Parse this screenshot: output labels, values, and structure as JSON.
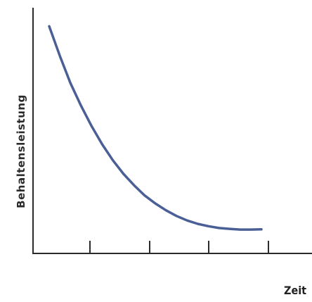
{
  "chart_data": {
    "type": "line",
    "title": "",
    "xlabel": "Zeit",
    "ylabel": "Behaltensleistung",
    "categories": [
      "",
      "",
      "",
      ""
    ],
    "grid": false,
    "legend": "none",
    "series": [
      {
        "x": [
          0,
          0.5,
          1,
          1.5,
          2,
          2.5,
          3,
          3.5,
          4,
          4.5,
          5,
          5.5,
          6,
          6.5,
          7,
          7.5,
          8,
          8.5,
          9,
          9.5,
          10
        ],
        "values": [
          100,
          87,
          75,
          65,
          56,
          48,
          41,
          35,
          30,
          25.5,
          22,
          19,
          16.5,
          14.5,
          13,
          12,
          11.2,
          10.8,
          10.5,
          10.5,
          10.6
        ],
        "color": "#4a5f95"
      }
    ],
    "xlim": [
      0,
      10
    ],
    "ylim": [
      0,
      110
    ]
  }
}
